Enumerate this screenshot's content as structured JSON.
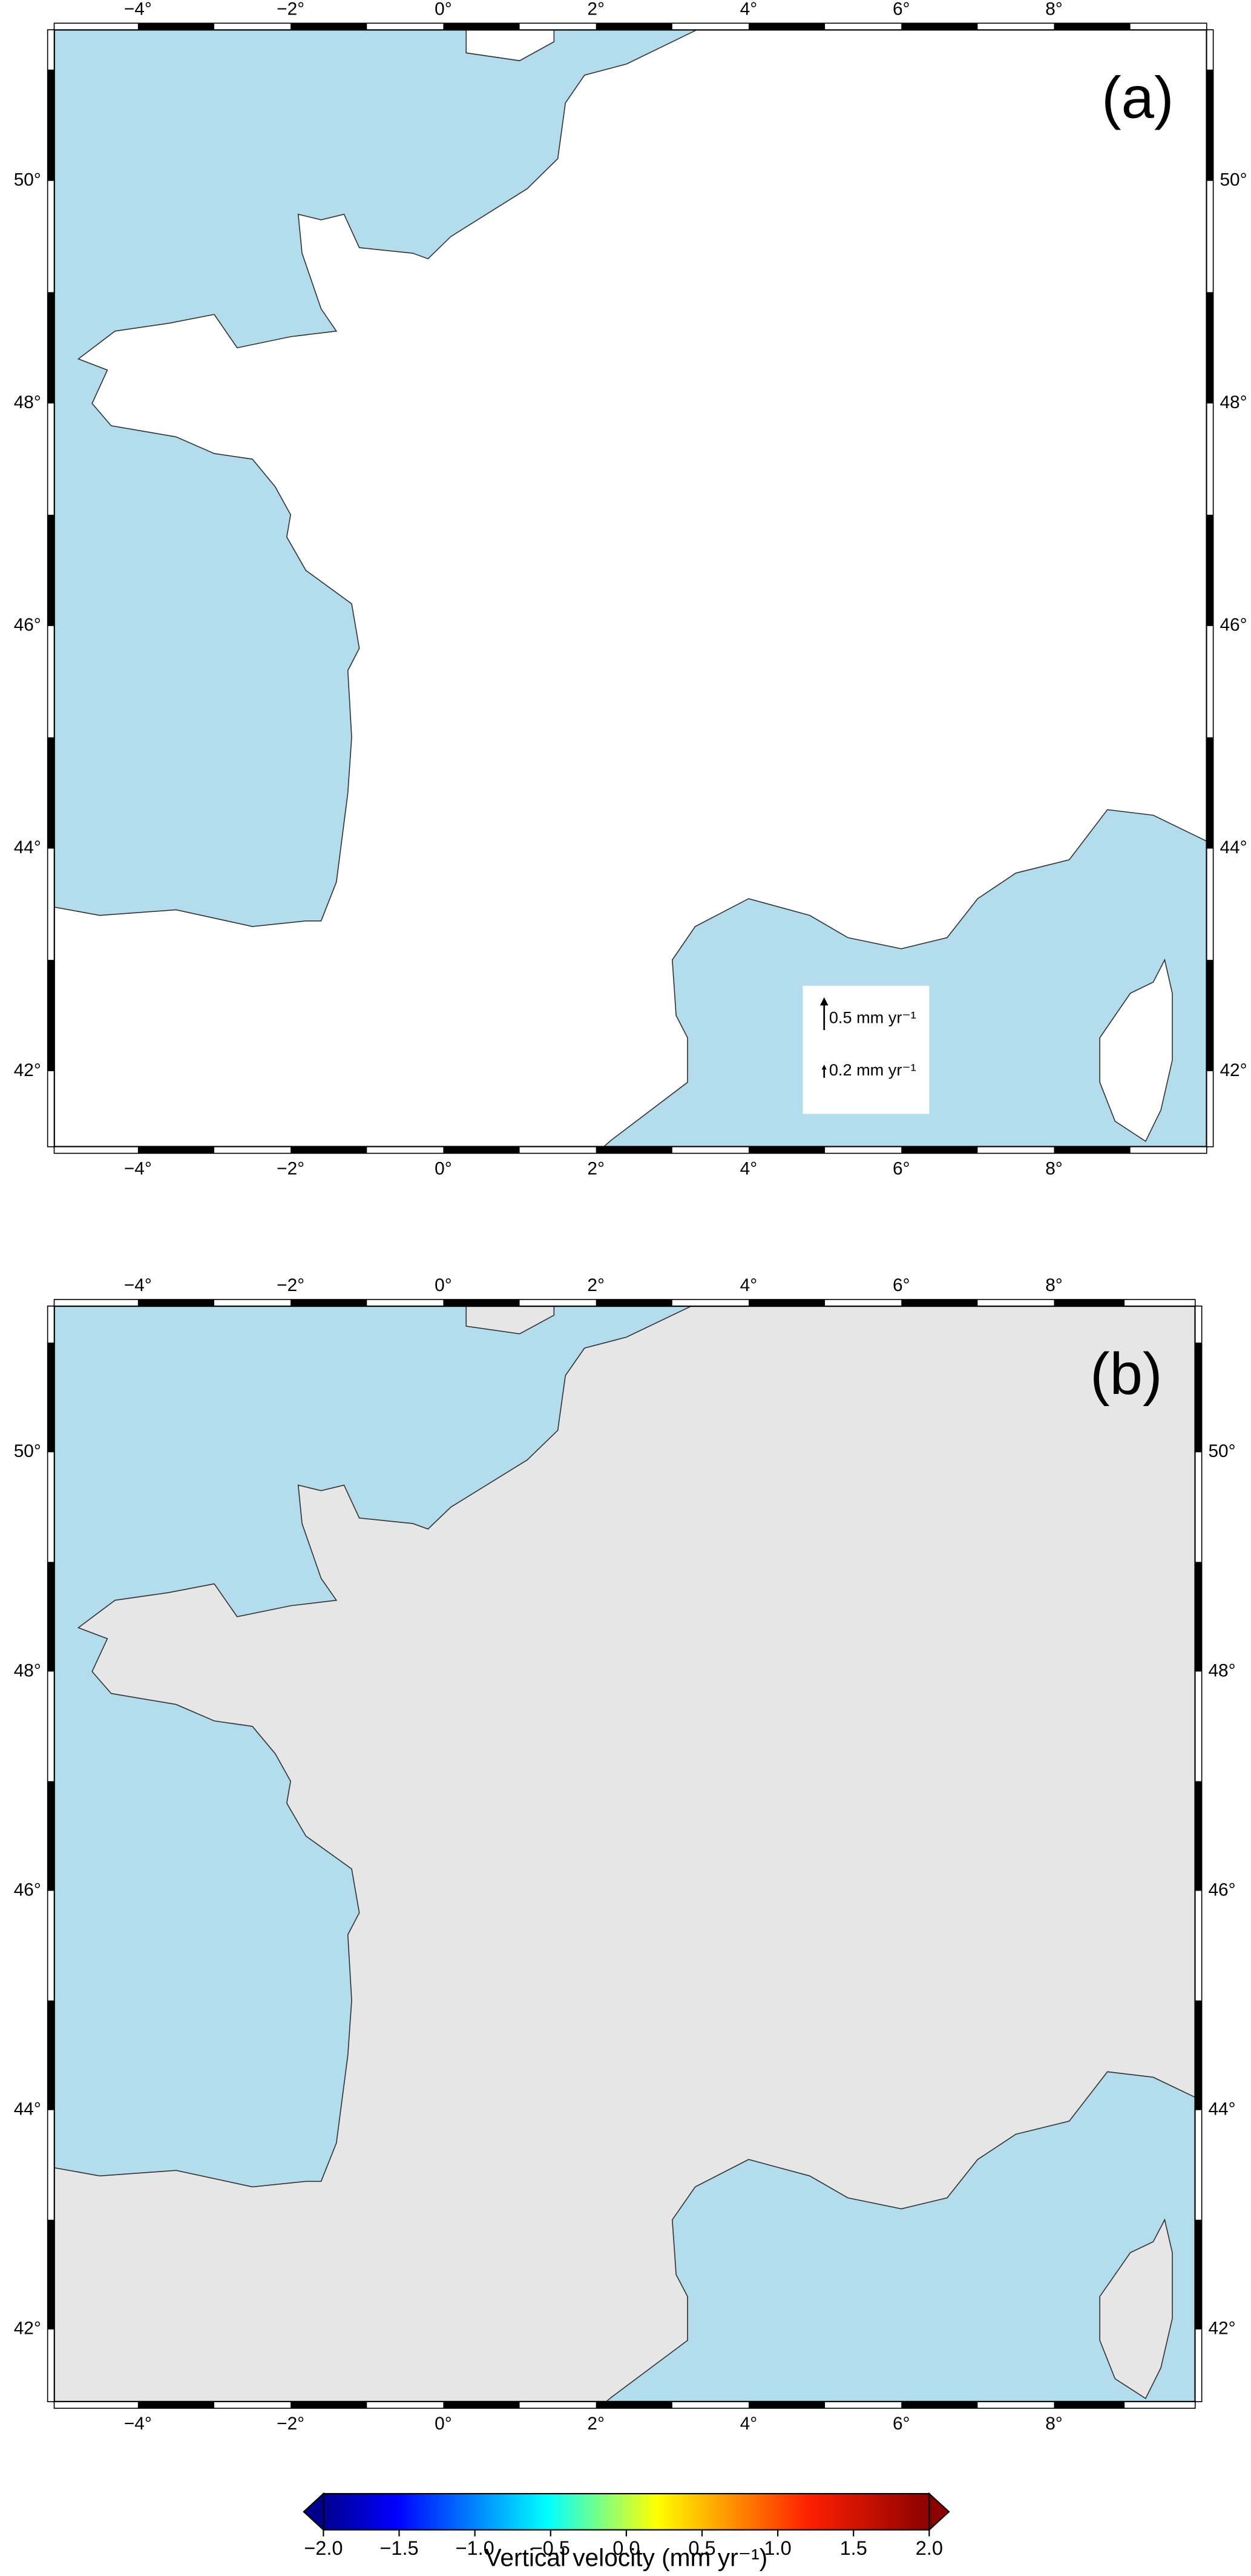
{
  "panels": [
    {
      "label": "(a)",
      "xticks": [
        {
          "value": -4,
          "label": "−4°"
        },
        {
          "value": -2,
          "label": "−2°"
        },
        {
          "value": 0,
          "label": "0°"
        },
        {
          "value": 2,
          "label": "2°"
        },
        {
          "value": 4,
          "label": "4°"
        },
        {
          "value": 6,
          "label": "6°"
        },
        {
          "value": 8,
          "label": "8°"
        }
      ],
      "yticks": [
        {
          "value": 42,
          "label": "42°"
        },
        {
          "value": 44,
          "label": "44°"
        },
        {
          "value": 46,
          "label": "46°"
        },
        {
          "value": 48,
          "label": "48°"
        },
        {
          "value": 50,
          "label": "50°"
        }
      ],
      "legend": [
        "0.5 mm yr⁻¹",
        "0.2 mm yr⁻¹"
      ]
    },
    {
      "label": "(b)",
      "xticks": [
        {
          "value": -4,
          "label": "−4°"
        },
        {
          "value": -2,
          "label": "−2°"
        },
        {
          "value": 0,
          "label": "0°"
        },
        {
          "value": 2,
          "label": "2°"
        },
        {
          "value": 4,
          "label": "4°"
        },
        {
          "value": 6,
          "label": "6°"
        },
        {
          "value": 8,
          "label": "8°"
        }
      ],
      "yticks": [
        {
          "value": 42,
          "label": "42°"
        },
        {
          "value": 44,
          "label": "44°"
        },
        {
          "value": 46,
          "label": "46°"
        },
        {
          "value": 48,
          "label": "48°"
        },
        {
          "value": 50,
          "label": "50°"
        }
      ]
    }
  ],
  "colorbar": {
    "title": "Vertical velocity (mm yr⁻¹)",
    "lim": [
      -2,
      2
    ],
    "ticks": [
      {
        "value": -2,
        "label": "−2.0"
      },
      {
        "value": -1.5,
        "label": "−1.5"
      },
      {
        "value": -1,
        "label": "−1.0"
      },
      {
        "value": -0.5,
        "label": "−0.5"
      },
      {
        "value": 0,
        "label": "0.0"
      },
      {
        "value": 0.5,
        "label": "0.5"
      },
      {
        "value": 1,
        "label": "1.0"
      },
      {
        "value": 1.5,
        "label": "1.5"
      },
      {
        "value": 2,
        "label": "2.0"
      }
    ]
  }
}
